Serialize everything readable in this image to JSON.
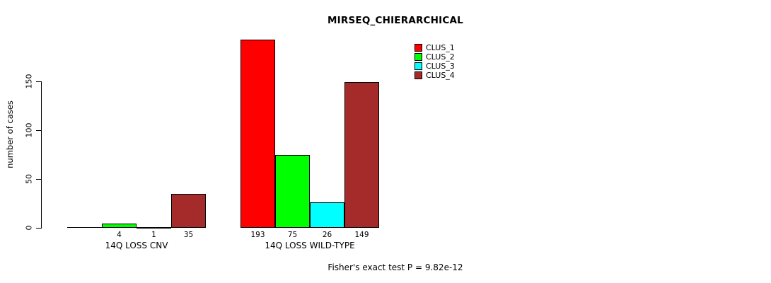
{
  "chart_data": {
    "type": "bar",
    "title": "MIRSEQ_CHIERARCHICAL",
    "xlabel": "",
    "ylabel": "number of cases",
    "categories": [
      "14Q LOSS CNV",
      "14Q LOSS WILD-TYPE"
    ],
    "series": [
      {
        "name": "CLUS_1",
        "color": "#FF0000",
        "values": [
          0,
          193
        ],
        "bar_labels": [
          "",
          "193"
        ]
      },
      {
        "name": "CLUS_2",
        "color": "#00FF00",
        "values": [
          4,
          75
        ],
        "bar_labels": [
          "4",
          "75"
        ]
      },
      {
        "name": "CLUS_3",
        "color": "#00FFFF",
        "values": [
          1,
          26
        ],
        "bar_labels": [
          "1",
          "26"
        ]
      },
      {
        "name": "CLUS_4",
        "color": "#A52A2A",
        "values": [
          35,
          149
        ],
        "bar_labels": [
          "35",
          "149"
        ]
      }
    ],
    "ylim": [
      0,
      150
    ],
    "yticks": [
      0,
      50,
      100,
      150
    ],
    "grid": false,
    "legend_position": "top-right"
  },
  "footer": {
    "text": "Fisher's exact test P = 9.82e-12"
  }
}
